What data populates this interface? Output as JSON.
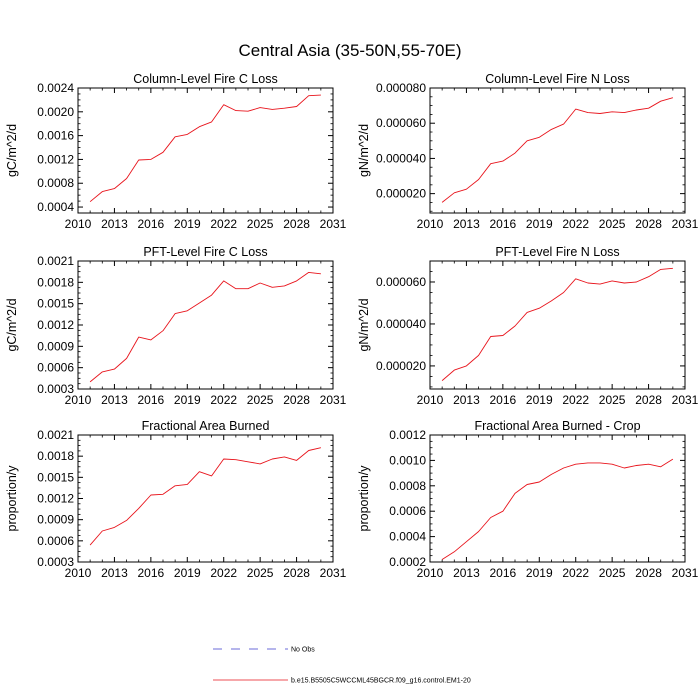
{
  "figure": {
    "title": "Central Asia (35-50N,55-70E)"
  },
  "colors": {
    "series": "#e8141c",
    "axis": "#000000",
    "no_obs": "#3b3bcc"
  },
  "chart_data": [
    {
      "type": "line",
      "title": "Column-Level Fire C Loss",
      "ylabel": "gC/m^2/d",
      "xlim": [
        2010,
        2031
      ],
      "ylim": [
        0.0003,
        0.0024
      ],
      "xticks": [
        2010,
        2013,
        2016,
        2019,
        2022,
        2025,
        2028,
        2031
      ],
      "xtick_labels": [
        "2010",
        "2013",
        "2016",
        "2019",
        "2022",
        "2025",
        "2028",
        "2031"
      ],
      "yticks": [
        0.0004,
        0.0008,
        0.0012,
        0.0016,
        0.002,
        0.0024
      ],
      "ytick_labels": [
        "0.0004",
        "0.0008",
        "0.0012",
        "0.0016",
        "0.0020",
        "0.0024"
      ],
      "x": [
        2011,
        2012,
        2013,
        2014,
        2015,
        2016,
        2017,
        2018,
        2019,
        2020,
        2021,
        2022,
        2023,
        2024,
        2025,
        2026,
        2027,
        2028,
        2029,
        2030
      ],
      "series": [
        {
          "name": "b.e15.B5505C5WCCML45BGCR.f09_g16.control.EM1-20",
          "values": [
            0.00049,
            0.00066,
            0.00071,
            0.00088,
            0.00119,
            0.0012,
            0.00132,
            0.00158,
            0.00162,
            0.00175,
            0.00183,
            0.00212,
            0.00202,
            0.00201,
            0.00207,
            0.00204,
            0.00206,
            0.00209,
            0.00227,
            0.00228
          ]
        }
      ]
    },
    {
      "type": "line",
      "title": "Column-Level Fire N Loss",
      "ylabel": "gN/m^2/d",
      "xlim": [
        2010,
        2031
      ],
      "ylim": [
        9e-06,
        8e-05
      ],
      "xticks": [
        2010,
        2013,
        2016,
        2019,
        2022,
        2025,
        2028,
        2031
      ],
      "xtick_labels": [
        "2010",
        "2013",
        "2016",
        "2019",
        "2022",
        "2025",
        "2028",
        "2031"
      ],
      "yticks": [
        2e-05,
        4e-05,
        6e-05,
        8e-05
      ],
      "ytick_labels": [
        "0.000020",
        "0.000040",
        "0.000060",
        "0.000080"
      ],
      "x": [
        2011,
        2012,
        2013,
        2014,
        2015,
        2016,
        2017,
        2018,
        2019,
        2020,
        2021,
        2022,
        2023,
        2024,
        2025,
        2026,
        2027,
        2028,
        2029,
        2030
      ],
      "series": [
        {
          "name": "b.e15.B5505C5WCCML45BGCR.f09_g16.control.EM1-20",
          "values": [
            1.5e-05,
            2.05e-05,
            2.25e-05,
            2.8e-05,
            3.7e-05,
            3.85e-05,
            4.3e-05,
            5e-05,
            5.2e-05,
            5.65e-05,
            5.95e-05,
            6.8e-05,
            6.6e-05,
            6.55e-05,
            6.65e-05,
            6.6e-05,
            6.75e-05,
            6.85e-05,
            7.25e-05,
            7.45e-05
          ]
        }
      ]
    },
    {
      "type": "line",
      "title": "PFT-Level Fire C Loss",
      "ylabel": "gC/m^2/d",
      "xlim": [
        2010,
        2031
      ],
      "ylim": [
        0.0003,
        0.0021
      ],
      "xticks": [
        2010,
        2013,
        2016,
        2019,
        2022,
        2025,
        2028,
        2031
      ],
      "xtick_labels": [
        "2010",
        "2013",
        "2016",
        "2019",
        "2022",
        "2025",
        "2028",
        "2031"
      ],
      "yticks": [
        0.0003,
        0.0006,
        0.0009,
        0.0012,
        0.0015,
        0.0018,
        0.0021
      ],
      "ytick_labels": [
        "0.0003",
        "0.0006",
        "0.0009",
        "0.0012",
        "0.0015",
        "0.0018",
        "0.0021"
      ],
      "x": [
        2011,
        2012,
        2013,
        2014,
        2015,
        2016,
        2017,
        2018,
        2019,
        2020,
        2021,
        2022,
        2023,
        2024,
        2025,
        2026,
        2027,
        2028,
        2029,
        2030
      ],
      "series": [
        {
          "name": "b.e15.B5505C5WCCML45BGCR.f09_g16.control.EM1-20",
          "values": [
            0.0004,
            0.00054,
            0.00058,
            0.00073,
            0.00103,
            0.00099,
            0.00112,
            0.00136,
            0.0014,
            0.00151,
            0.00162,
            0.00182,
            0.00171,
            0.00171,
            0.00179,
            0.00173,
            0.00175,
            0.00182,
            0.00194,
            0.00192
          ]
        }
      ]
    },
    {
      "type": "line",
      "title": "PFT-Level Fire N Loss",
      "ylabel": "gN/m^2/d",
      "xlim": [
        2010,
        2031
      ],
      "ylim": [
        9e-06,
        7e-05
      ],
      "xticks": [
        2010,
        2013,
        2016,
        2019,
        2022,
        2025,
        2028,
        2031
      ],
      "xtick_labels": [
        "2010",
        "2013",
        "2016",
        "2019",
        "2022",
        "2025",
        "2028",
        "2031"
      ],
      "yticks": [
        2e-05,
        4e-05,
        6e-05
      ],
      "ytick_labels": [
        "0.000020",
        "0.000040",
        "0.000060"
      ],
      "x": [
        2011,
        2012,
        2013,
        2014,
        2015,
        2016,
        2017,
        2018,
        2019,
        2020,
        2021,
        2022,
        2023,
        2024,
        2025,
        2026,
        2027,
        2028,
        2029,
        2030
      ],
      "series": [
        {
          "name": "b.e15.B5505C5WCCML45BGCR.f09_g16.control.EM1-20",
          "values": [
            1.3e-05,
            1.8e-05,
            2e-05,
            2.5e-05,
            3.4e-05,
            3.45e-05,
            3.9e-05,
            4.55e-05,
            4.75e-05,
            5.1e-05,
            5.5e-05,
            6.15e-05,
            5.95e-05,
            5.9e-05,
            6.05e-05,
            5.95e-05,
            6e-05,
            6.25e-05,
            6.6e-05,
            6.65e-05
          ]
        }
      ]
    },
    {
      "type": "line",
      "title": "Fractional Area Burned",
      "ylabel": "proportion/y",
      "xlim": [
        2010,
        2031
      ],
      "ylim": [
        0.0003,
        0.0021
      ],
      "xticks": [
        2010,
        2013,
        2016,
        2019,
        2022,
        2025,
        2028,
        2031
      ],
      "xtick_labels": [
        "2010",
        "2013",
        "2016",
        "2019",
        "2022",
        "2025",
        "2028",
        "2031"
      ],
      "yticks": [
        0.0003,
        0.0006,
        0.0009,
        0.0012,
        0.0015,
        0.0018,
        0.0021
      ],
      "ytick_labels": [
        "0.0003",
        "0.0006",
        "0.0009",
        "0.0012",
        "0.0015",
        "0.0018",
        "0.0021"
      ],
      "x": [
        2011,
        2012,
        2013,
        2014,
        2015,
        2016,
        2017,
        2018,
        2019,
        2020,
        2021,
        2022,
        2023,
        2024,
        2025,
        2026,
        2027,
        2028,
        2029,
        2030
      ],
      "series": [
        {
          "name": "b.e15.B5505C5WCCML45BGCR.f09_g16.control.EM1-20",
          "values": [
            0.00054,
            0.00074,
            0.00079,
            0.00089,
            0.00106,
            0.00125,
            0.00126,
            0.00138,
            0.0014,
            0.00158,
            0.00152,
            0.00176,
            0.00175,
            0.00172,
            0.00169,
            0.00176,
            0.00179,
            0.00174,
            0.00188,
            0.00192
          ]
        }
      ]
    },
    {
      "type": "line",
      "title": "Fractional Area Burned - Crop",
      "ylabel": "proportion/y",
      "xlim": [
        2010,
        2031
      ],
      "ylim": [
        0.0002,
        0.0012
      ],
      "xticks": [
        2010,
        2013,
        2016,
        2019,
        2022,
        2025,
        2028,
        2031
      ],
      "xtick_labels": [
        "2010",
        "2013",
        "2016",
        "2019",
        "2022",
        "2025",
        "2028",
        "2031"
      ],
      "yticks": [
        0.0002,
        0.0004,
        0.0006,
        0.0008,
        0.001,
        0.0012
      ],
      "ytick_labels": [
        "0.0002",
        "0.0004",
        "0.0006",
        "0.0008",
        "0.0010",
        "0.0012"
      ],
      "x": [
        2011,
        2012,
        2013,
        2014,
        2015,
        2016,
        2017,
        2018,
        2019,
        2020,
        2021,
        2022,
        2023,
        2024,
        2025,
        2026,
        2027,
        2028,
        2029,
        2030
      ],
      "series": [
        {
          "name": "b.e15.B5505C5WCCML45BGCR.f09_g16.control.EM1-20",
          "values": [
            0.00022,
            0.00028,
            0.00036,
            0.00044,
            0.00055,
            0.0006,
            0.00074,
            0.00081,
            0.00083,
            0.00089,
            0.00094,
            0.00097,
            0.00098,
            0.00098,
            0.00097,
            0.00094,
            0.00096,
            0.00097,
            0.00095,
            0.00101
          ]
        }
      ]
    }
  ],
  "legend": {
    "items": [
      {
        "label": "No Obs",
        "style": "dashed"
      },
      {
        "label": "b.e15.B5505C5WCCML45BGCR.f09_g16.control.EM1-20",
        "style": "solid"
      }
    ]
  }
}
